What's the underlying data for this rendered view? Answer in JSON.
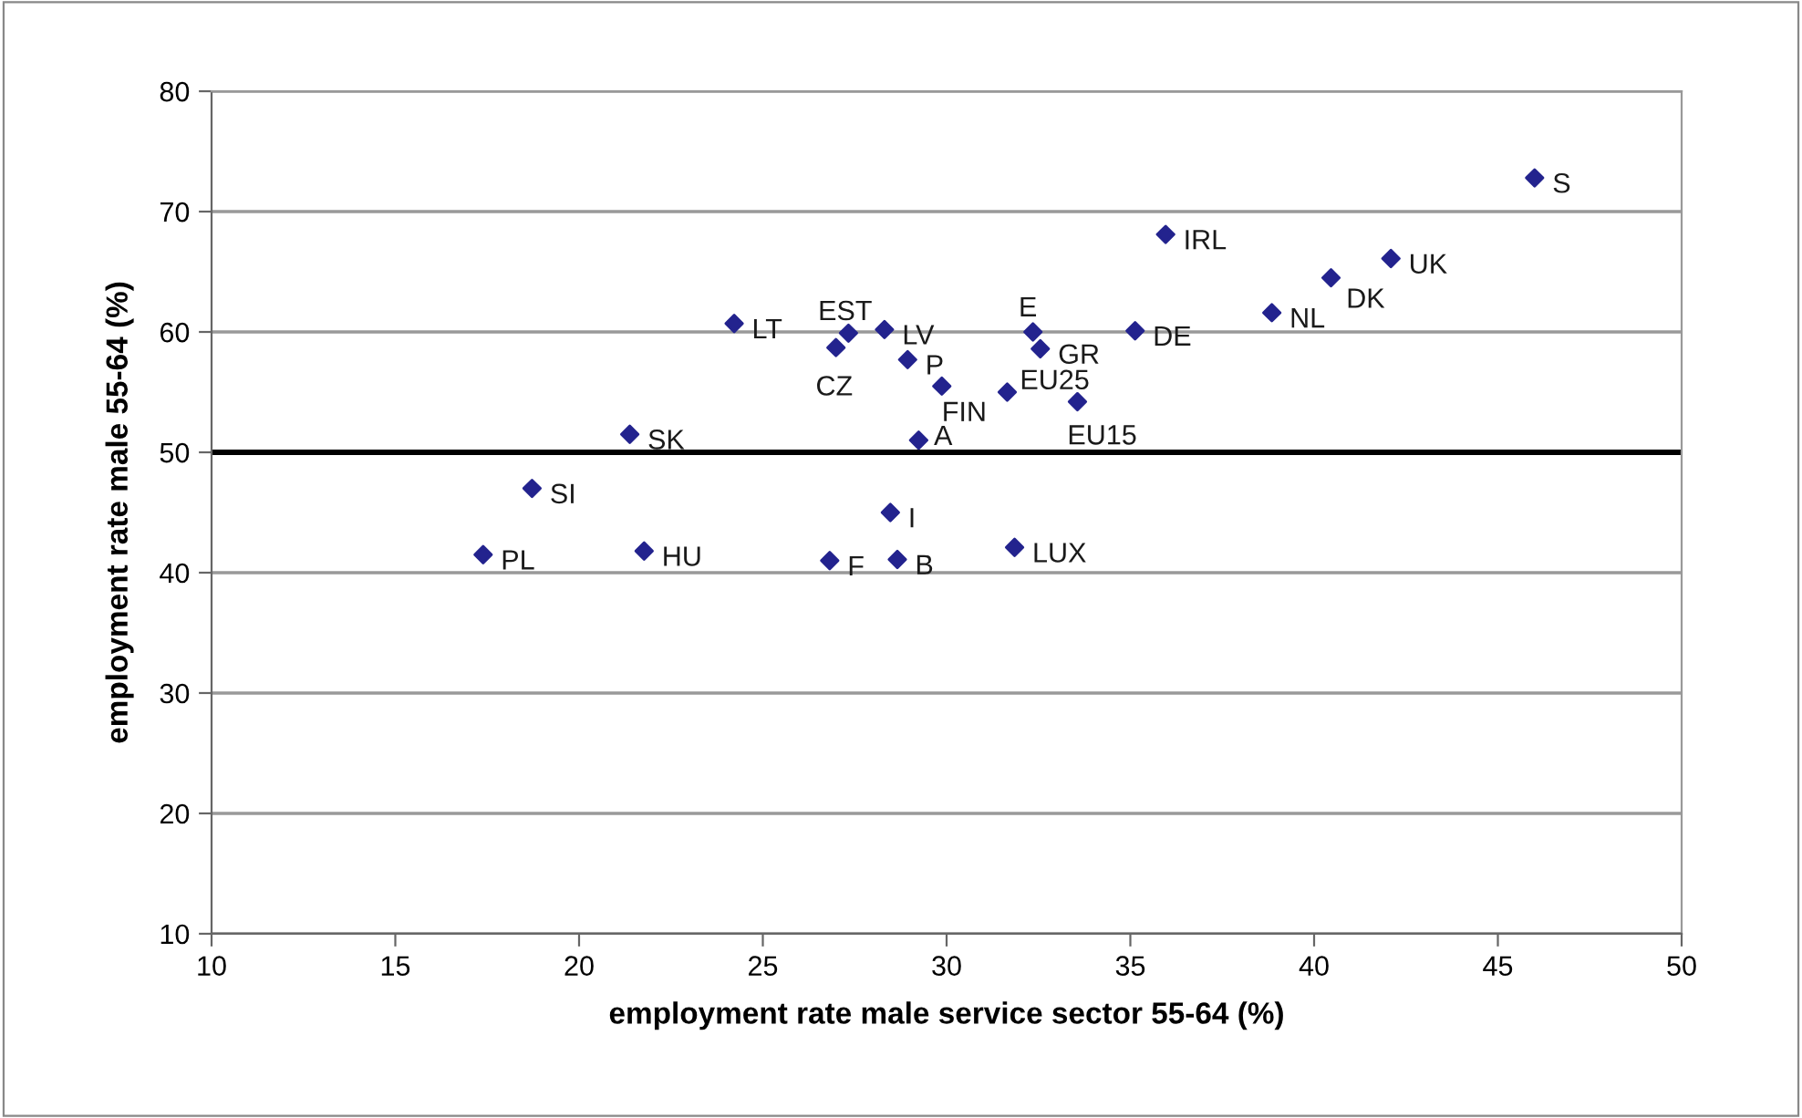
{
  "chart_data": {
    "type": "scatter",
    "xlabel": "employment rate male service sector 55-64 (%)",
    "ylabel": "employment rate male 55-64 (%)",
    "x": [
      46.0,
      35.96,
      42.09,
      40.46,
      38.85,
      32.35,
      35.13,
      32.55,
      31.65,
      33.56,
      24.22,
      27.33,
      26.99,
      28.31,
      28.94,
      29.87,
      21.38,
      29.24,
      18.72,
      17.39,
      21.77,
      26.82,
      28.47,
      28.66,
      31.85
    ],
    "series": [
      {
        "color": "#23238e",
        "values": [
          72.8,
          68.1,
          66.1,
          64.5,
          61.6,
          60.0,
          60.1,
          58.6,
          55.0,
          54.2,
          60.7,
          59.9,
          58.7,
          60.2,
          57.7,
          55.5,
          51.5,
          51.0,
          47.0,
          41.5,
          41.8,
          41.0,
          45.0,
          41.1,
          42.1
        ]
      }
    ],
    "annotations": [
      {
        "text": "S",
        "x": 46.0,
        "y": 72.8
      },
      {
        "text": "IRL",
        "x": 35.96,
        "y": 68.1
      },
      {
        "text": "UK",
        "x": 42.09,
        "y": 66.1
      },
      {
        "text": "DK",
        "x": 40.46,
        "y": 64.5
      },
      {
        "text": "NL",
        "x": 38.85,
        "y": 61.6
      },
      {
        "text": "E",
        "x": 32.35,
        "y": 60.0
      },
      {
        "text": "DE",
        "x": 35.13,
        "y": 60.1
      },
      {
        "text": "GR",
        "x": 32.55,
        "y": 58.6
      },
      {
        "text": "EU25",
        "x": 31.65,
        "y": 55.0
      },
      {
        "text": "EU15",
        "x": 33.56,
        "y": 54.2
      },
      {
        "text": "LT",
        "x": 24.22,
        "y": 60.7
      },
      {
        "text": "EST",
        "x": 27.33,
        "y": 59.9
      },
      {
        "text": "CZ",
        "x": 26.99,
        "y": 58.7
      },
      {
        "text": "LV",
        "x": 28.31,
        "y": 60.2
      },
      {
        "text": "P",
        "x": 28.94,
        "y": 57.7
      },
      {
        "text": "FIN",
        "x": 29.87,
        "y": 55.5
      },
      {
        "text": "SK",
        "x": 21.38,
        "y": 51.5
      },
      {
        "text": "A",
        "x": 29.24,
        "y": 51.0
      },
      {
        "text": "SI",
        "x": 18.72,
        "y": 47.0
      },
      {
        "text": "PL",
        "x": 17.39,
        "y": 41.5
      },
      {
        "text": "HU",
        "x": 21.77,
        "y": 41.8
      },
      {
        "text": "F",
        "x": 26.82,
        "y": 41.0
      },
      {
        "text": "I",
        "x": 28.47,
        "y": 45.0
      },
      {
        "text": "B",
        "x": 28.66,
        "y": 41.1
      },
      {
        "text": "LUX",
        "x": 31.85,
        "y": 42.1
      }
    ],
    "ref_lines": [
      {
        "axis": "y",
        "value": 50,
        "color": "#000000"
      }
    ],
    "xlim": [
      10,
      50
    ],
    "xticks": [
      10,
      15,
      20,
      25,
      30,
      35,
      40,
      45,
      50
    ],
    "ylim": [
      10,
      80
    ],
    "yticks": [
      10,
      20,
      30,
      40,
      50,
      60,
      70,
      80
    ],
    "grid": "y",
    "marker": "diamond",
    "legend": false
  }
}
